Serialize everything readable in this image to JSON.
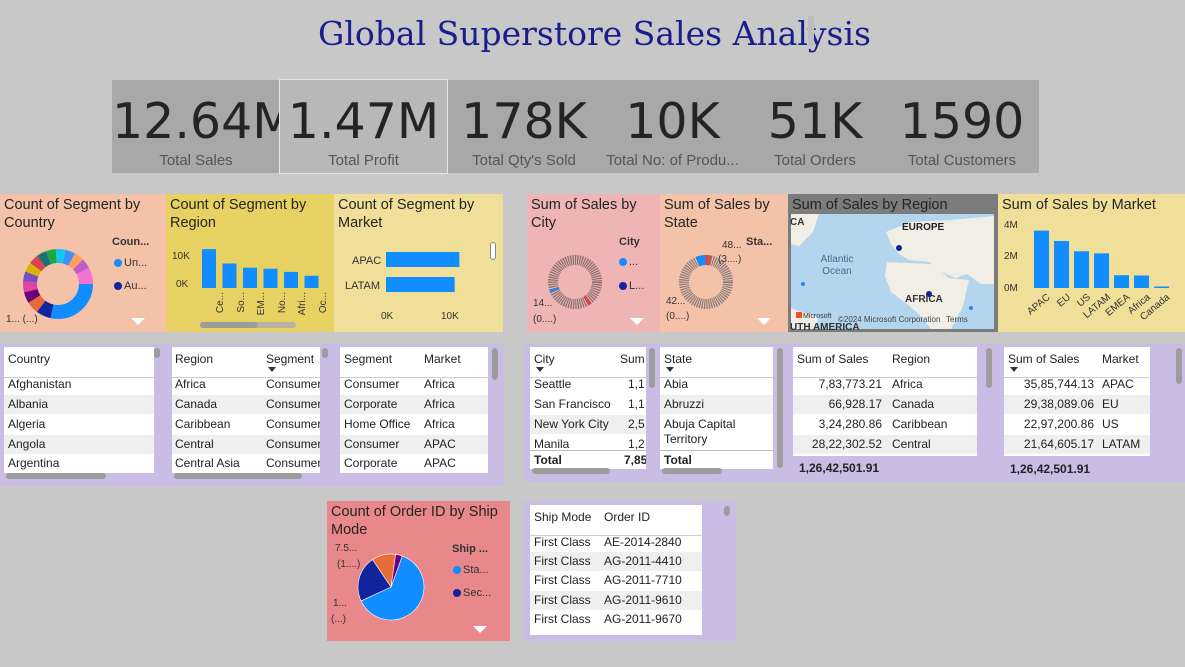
{
  "title": "Global Superstore Sales Analysis",
  "kpis": [
    {
      "value": "12.64M",
      "label": "Total Sales"
    },
    {
      "value": "1.47M",
      "label": "Total Profit"
    },
    {
      "value": "178K",
      "label": "Total Qty's Sold"
    },
    {
      "value": "10K",
      "label": "Total No: of Produ..."
    },
    {
      "value": "51K",
      "label": "Total Orders"
    },
    {
      "value": "1590",
      "label": "Total Customers"
    }
  ],
  "colors": {
    "blue": "#118dff",
    "navy": "#12239e",
    "orange": "#e66c37",
    "maroon": "#6b007b",
    "peach": "#f4c2a8",
    "gold": "#e8d163",
    "lightgold": "#efdf98",
    "pink": "#efb4b4",
    "salmon": "#e8888a",
    "lavender": "#c9bde6"
  },
  "tiles": {
    "seg_country": {
      "title": "Count of Segment by Country",
      "legend_title": "Coun...",
      "legend": [
        "Un...",
        "Au..."
      ],
      "tail_label": "1... (...)"
    },
    "seg_region": {
      "title": "Count of Segment by Region",
      "y_ticks": [
        "10K",
        "0K"
      ],
      "categories": [
        "Ce...",
        "So...",
        "EM...",
        "No...",
        "Afri...",
        "Oc..."
      ]
    },
    "seg_market": {
      "title": "Count of Segment by Market",
      "categories": [
        "APAC",
        "LATAM"
      ],
      "x_ticks": [
        "0K",
        "10K"
      ]
    },
    "sales_city": {
      "title": "Sum of Sales by City",
      "legend_title": "City",
      "legend": [
        "...",
        "L..."
      ],
      "tail_label": "14...",
      "tail_label2": "(0....)"
    },
    "sales_state": {
      "title": "Sum of Sales by State",
      "legend_title": "Sta...",
      "top_label": "48...",
      "top_label2": "(3....)",
      "tail_label": "42...",
      "tail_label2": "(0....)"
    },
    "sales_region_map": {
      "title": "Sum of Sales by Region",
      "labels": {
        "ca": "CA",
        "europe": "EUROPE",
        "ocean": "Atlantic Ocean",
        "africa": "AFRICA",
        "samerica": "UTH AMERICA"
      },
      "logo": "Microsoft",
      "copyright": "©2024 Microsoft Corporation",
      "terms": "Terms"
    },
    "sales_market": {
      "title": "Sum of Sales by Market",
      "y_ticks": [
        "4M",
        "2M",
        "0M"
      ],
      "categories": [
        "APAC",
        "EU",
        "US",
        "LATAM",
        "EMEA",
        "Africa",
        "Canada"
      ]
    },
    "ship_mode": {
      "title": "Count of Order ID by Ship Mode",
      "legend_title": "Ship ...",
      "legend": [
        "Sta...",
        "Sec..."
      ],
      "label1": "7.5...",
      "label1b": "(1....)",
      "label2": "1...",
      "label2b": "(...)"
    }
  },
  "chart_data": [
    {
      "type": "bar",
      "title": "Count of Segment by Region",
      "categories": [
        "Ce...",
        "So...",
        "EM...",
        "No...",
        "Afri...",
        "Oc..."
      ],
      "values": [
        11100,
        7000,
        5800,
        5500,
        4600,
        3500
      ],
      "ylim": [
        0,
        12000
      ]
    },
    {
      "type": "bar",
      "title": "Count of Segment by Market",
      "categories": [
        "APAC",
        "LATAM"
      ],
      "values": [
        11000,
        10300
      ],
      "xlim": [
        0,
        12000
      ]
    },
    {
      "type": "bar",
      "title": "Sum of Sales by Market",
      "categories": [
        "APAC",
        "EU",
        "US",
        "LATAM",
        "EMEA",
        "Africa",
        "Canada"
      ],
      "values": [
        3585744.13,
        2938089.06,
        2297200.86,
        2164605.17,
        800000,
        780000,
        66928.17
      ],
      "ylim": [
        0,
        4000000
      ]
    },
    {
      "type": "pie",
      "title": "Count of Order ID by Ship Mode",
      "values": [
        7.5,
        2.7,
        1.4,
        0.4
      ],
      "labels": [
        "",
        "",
        "",
        ""
      ],
      "colors": [
        "#118dff",
        "#12239e",
        "#e66c37",
        "#6b007b"
      ]
    }
  ],
  "tables": {
    "country": {
      "headers": [
        "Country"
      ],
      "rows": [
        [
          "Afghanistan"
        ],
        [
          "Albania"
        ],
        [
          "Algeria"
        ],
        [
          "Angola"
        ],
        [
          "Argentina"
        ]
      ]
    },
    "region_segment": {
      "headers": [
        "Region",
        "Segment"
      ],
      "rows": [
        [
          "Africa",
          "Consumer"
        ],
        [
          "Canada",
          "Consumer"
        ],
        [
          "Caribbean",
          "Consumer"
        ],
        [
          "Central",
          "Consumer"
        ],
        [
          "Central Asia",
          "Consumer"
        ]
      ]
    },
    "segment_market": {
      "headers": [
        "Segment",
        "Market"
      ],
      "rows": [
        [
          "Consumer",
          "Africa"
        ],
        [
          "Corporate",
          "Africa"
        ],
        [
          "Home Office",
          "Africa"
        ],
        [
          "Consumer",
          "APAC"
        ],
        [
          "Corporate",
          "APAC"
        ]
      ]
    },
    "city_sum": {
      "headers": [
        "City",
        "Sum"
      ],
      "rows": [
        [
          "Seattle",
          "1,1"
        ],
        [
          "San Francisco",
          "1,1"
        ],
        [
          "New York City",
          "2,5"
        ],
        [
          "Manila",
          "1,2"
        ]
      ],
      "total": [
        "Total",
        "7,85"
      ]
    },
    "state": {
      "headers": [
        "State"
      ],
      "rows": [
        [
          "Abia"
        ],
        [
          "Abruzzi"
        ],
        [
          "Abuja Capital Territory"
        ]
      ],
      "total": [
        "Total"
      ]
    },
    "sales_region": {
      "headers": [
        "Sum of Sales",
        "Region"
      ],
      "rows": [
        [
          "7,83,773.21",
          "Africa"
        ],
        [
          "66,928.17",
          "Canada"
        ],
        [
          "3,24,280.86",
          "Caribbean"
        ],
        [
          "28,22,302.52",
          "Central"
        ]
      ],
      "total": "1,26,42,501.91"
    },
    "sales_market": {
      "headers": [
        "Sum of Sales",
        "Market"
      ],
      "rows": [
        [
          "35,85,744.13",
          "APAC"
        ],
        [
          "29,38,089.06",
          "EU"
        ],
        [
          "22,97,200.86",
          "US"
        ],
        [
          "21,64,605.17",
          "LATAM"
        ]
      ],
      "total": "1,26,42,501.91"
    },
    "ship_order": {
      "headers": [
        "Ship Mode",
        "Order ID"
      ],
      "rows": [
        [
          "First Class",
          "AE-2014-2840"
        ],
        [
          "First Class",
          "AG-2011-4410"
        ],
        [
          "First Class",
          "AG-2011-7710"
        ],
        [
          "First Class",
          "AG-2011-9610"
        ],
        [
          "First Class",
          "AG-2011-9670"
        ]
      ]
    }
  }
}
